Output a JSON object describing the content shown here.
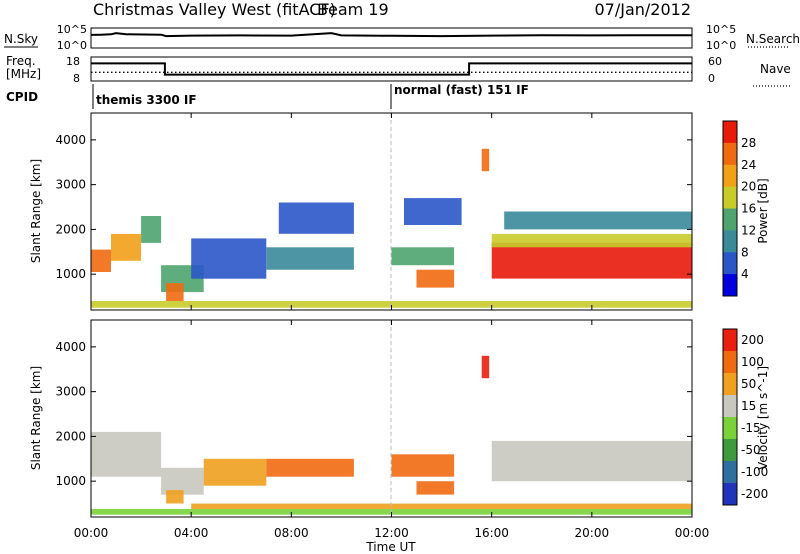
{
  "header": {
    "station": "Christmas Valley West (fitACF)",
    "beam": "Beam 19",
    "date": "07/Jan/2012"
  },
  "strips": {
    "nsky_label": "N.Sky",
    "nsky_ticks": [
      "10^5",
      "10^0"
    ],
    "nsearch_label": "N.Search",
    "nsearch_ticks": [
      "10^5",
      "10^0"
    ],
    "freq_label_line1": "Freq.",
    "freq_label_line2": "[MHz]",
    "freq_ticks": [
      "18",
      "8"
    ],
    "nave_label": "Nave",
    "nave_ticks": [
      "60",
      "0"
    ],
    "cpid_label": "CPID",
    "cpid_modes": [
      {
        "label": "themis 3300 IF",
        "start_hour": 0
      },
      {
        "label": "normal (fast) 151 IF",
        "start_hour": 12
      }
    ]
  },
  "colors": {
    "power_scale": [
      "#0000dd",
      "#2a56c8",
      "#3a8a9a",
      "#4ea36e",
      "#c8cc2a",
      "#f2a018",
      "#f06a10",
      "#e81a0a"
    ],
    "velocity_scale": [
      "#2233bb",
      "#2f6f9f",
      "#3f9a3f",
      "#7ad23a",
      "#c8c8c0",
      "#f0a020",
      "#f06a10",
      "#e82010"
    ],
    "ground_scatter": "#c8c8c0"
  },
  "chart_data": [
    {
      "type": "line",
      "name": "N.Sky / N.Search",
      "y_scale": "log",
      "ylim": [
        1,
        100000
      ],
      "x": [
        0,
        0.4,
        0.8,
        1.0,
        1.4,
        2.8,
        3.0,
        4.0,
        6.0,
        8.0,
        9.6,
        10.0,
        12.0,
        14.0,
        16.0,
        18.0,
        20.0,
        22.0,
        24.0
      ],
      "y": [
        5000,
        6000,
        8000,
        20000,
        8000,
        6000,
        2000,
        3000,
        3500,
        3000,
        20000,
        3500,
        2500,
        2000,
        3000,
        4000,
        3500,
        4000,
        4000
      ]
    },
    {
      "type": "line",
      "name": "Freq / Nave",
      "freq_ylim": [
        8,
        18
      ],
      "nave_ylim": [
        0,
        60
      ],
      "freq_x": [
        0,
        2.95,
        2.95,
        15.1,
        15.1,
        24
      ],
      "freq_y": [
        15.8,
        15.8,
        10.2,
        10.2,
        15.8,
        15.8
      ],
      "nave_x": [
        0,
        24
      ],
      "nave_y": [
        20,
        20
      ]
    },
    {
      "type": "heatmap",
      "title": "",
      "xlabel": "",
      "ylabel": "Slant Range [km]",
      "xlim": [
        0,
        24
      ],
      "ylim": [
        200,
        4600
      ],
      "y_ticks": [
        1000,
        2000,
        3000,
        4000
      ],
      "colorbar_label": "Power [dB]",
      "colorbar_ticks": [
        "4",
        "8",
        "12",
        "16",
        "20",
        "24",
        "28"
      ],
      "bands": [
        {
          "x0": 0.0,
          "x1": 0.8,
          "y0": 1050,
          "y1": 1550,
          "level": 6
        },
        {
          "x0": 0.8,
          "x1": 2.0,
          "y0": 1300,
          "y1": 1900,
          "level": 5
        },
        {
          "x0": 2.0,
          "x1": 2.8,
          "y0": 1700,
          "y1": 2300,
          "level": 3
        },
        {
          "x0": 2.8,
          "x1": 4.5,
          "y0": 600,
          "y1": 1200,
          "level": 3
        },
        {
          "x0": 3.0,
          "x1": 3.7,
          "y0": 400,
          "y1": 800,
          "level": 6
        },
        {
          "x0": 4.0,
          "x1": 7.0,
          "y0": 900,
          "y1": 1800,
          "level": 1
        },
        {
          "x0": 7.0,
          "x1": 10.5,
          "y0": 1100,
          "y1": 1600,
          "level": 2
        },
        {
          "x0": 7.5,
          "x1": 10.5,
          "y0": 1900,
          "y1": 2600,
          "level": 1
        },
        {
          "x0": 12.0,
          "x1": 14.5,
          "y0": 1200,
          "y1": 1600,
          "level": 3
        },
        {
          "x0": 12.5,
          "x1": 14.8,
          "y0": 2100,
          "y1": 2700,
          "level": 1
        },
        {
          "x0": 13.0,
          "x1": 14.5,
          "y0": 700,
          "y1": 1100,
          "level": 6
        },
        {
          "x0": 15.6,
          "x1": 15.9,
          "y0": 3300,
          "y1": 3800,
          "level": 6
        },
        {
          "x0": 16.0,
          "x1": 24.0,
          "y0": 900,
          "y1": 1700,
          "level": 7
        },
        {
          "x0": 16.0,
          "x1": 24.0,
          "y0": 1600,
          "y1": 1900,
          "level": 4
        },
        {
          "x0": 16.5,
          "x1": 24.0,
          "y0": 2000,
          "y1": 2400,
          "level": 2
        },
        {
          "x0": 0.0,
          "x1": 24.0,
          "y0": 250,
          "y1": 400,
          "level": 4
        }
      ]
    },
    {
      "type": "heatmap",
      "title": "",
      "xlabel": "Time UT",
      "ylabel": "Slant Range [km]",
      "xlim": [
        0,
        24
      ],
      "ylim": [
        200,
        4600
      ],
      "y_ticks": [
        1000,
        2000,
        3000,
        4000
      ],
      "x_ticks": [
        "00:00",
        "04:00",
        "08:00",
        "12:00",
        "16:00",
        "20:00",
        "00:00"
      ],
      "colorbar_label": "Velocity [m s^-1]",
      "colorbar_ticks": [
        "200",
        "100",
        "50",
        "15",
        "-15",
        "-50",
        "-100",
        "-200"
      ],
      "bands": [
        {
          "x0": 0.0,
          "x1": 2.8,
          "y0": 1100,
          "y1": 2100,
          "level": 4
        },
        {
          "x0": 2.8,
          "x1": 4.5,
          "y0": 700,
          "y1": 1300,
          "level": 4
        },
        {
          "x0": 3.0,
          "x1": 3.7,
          "y0": 500,
          "y1": 800,
          "level": 5
        },
        {
          "x0": 4.5,
          "x1": 7.0,
          "y0": 900,
          "y1": 1500,
          "level": 5
        },
        {
          "x0": 7.0,
          "x1": 10.5,
          "y0": 1100,
          "y1": 1500,
          "level": 6
        },
        {
          "x0": 12.0,
          "x1": 14.5,
          "y0": 1100,
          "y1": 1600,
          "level": 6
        },
        {
          "x0": 13.0,
          "x1": 14.5,
          "y0": 700,
          "y1": 1000,
          "level": 6
        },
        {
          "x0": 15.6,
          "x1": 15.9,
          "y0": 3300,
          "y1": 3800,
          "level": 7
        },
        {
          "x0": 16.0,
          "x1": 24.0,
          "y0": 1000,
          "y1": 1900,
          "level": 4
        },
        {
          "x0": 0.0,
          "x1": 24.0,
          "y0": 250,
          "y1": 380,
          "level": 3
        },
        {
          "x0": 4.0,
          "x1": 24.0,
          "y0": 380,
          "y1": 500,
          "level": 5
        }
      ]
    }
  ]
}
